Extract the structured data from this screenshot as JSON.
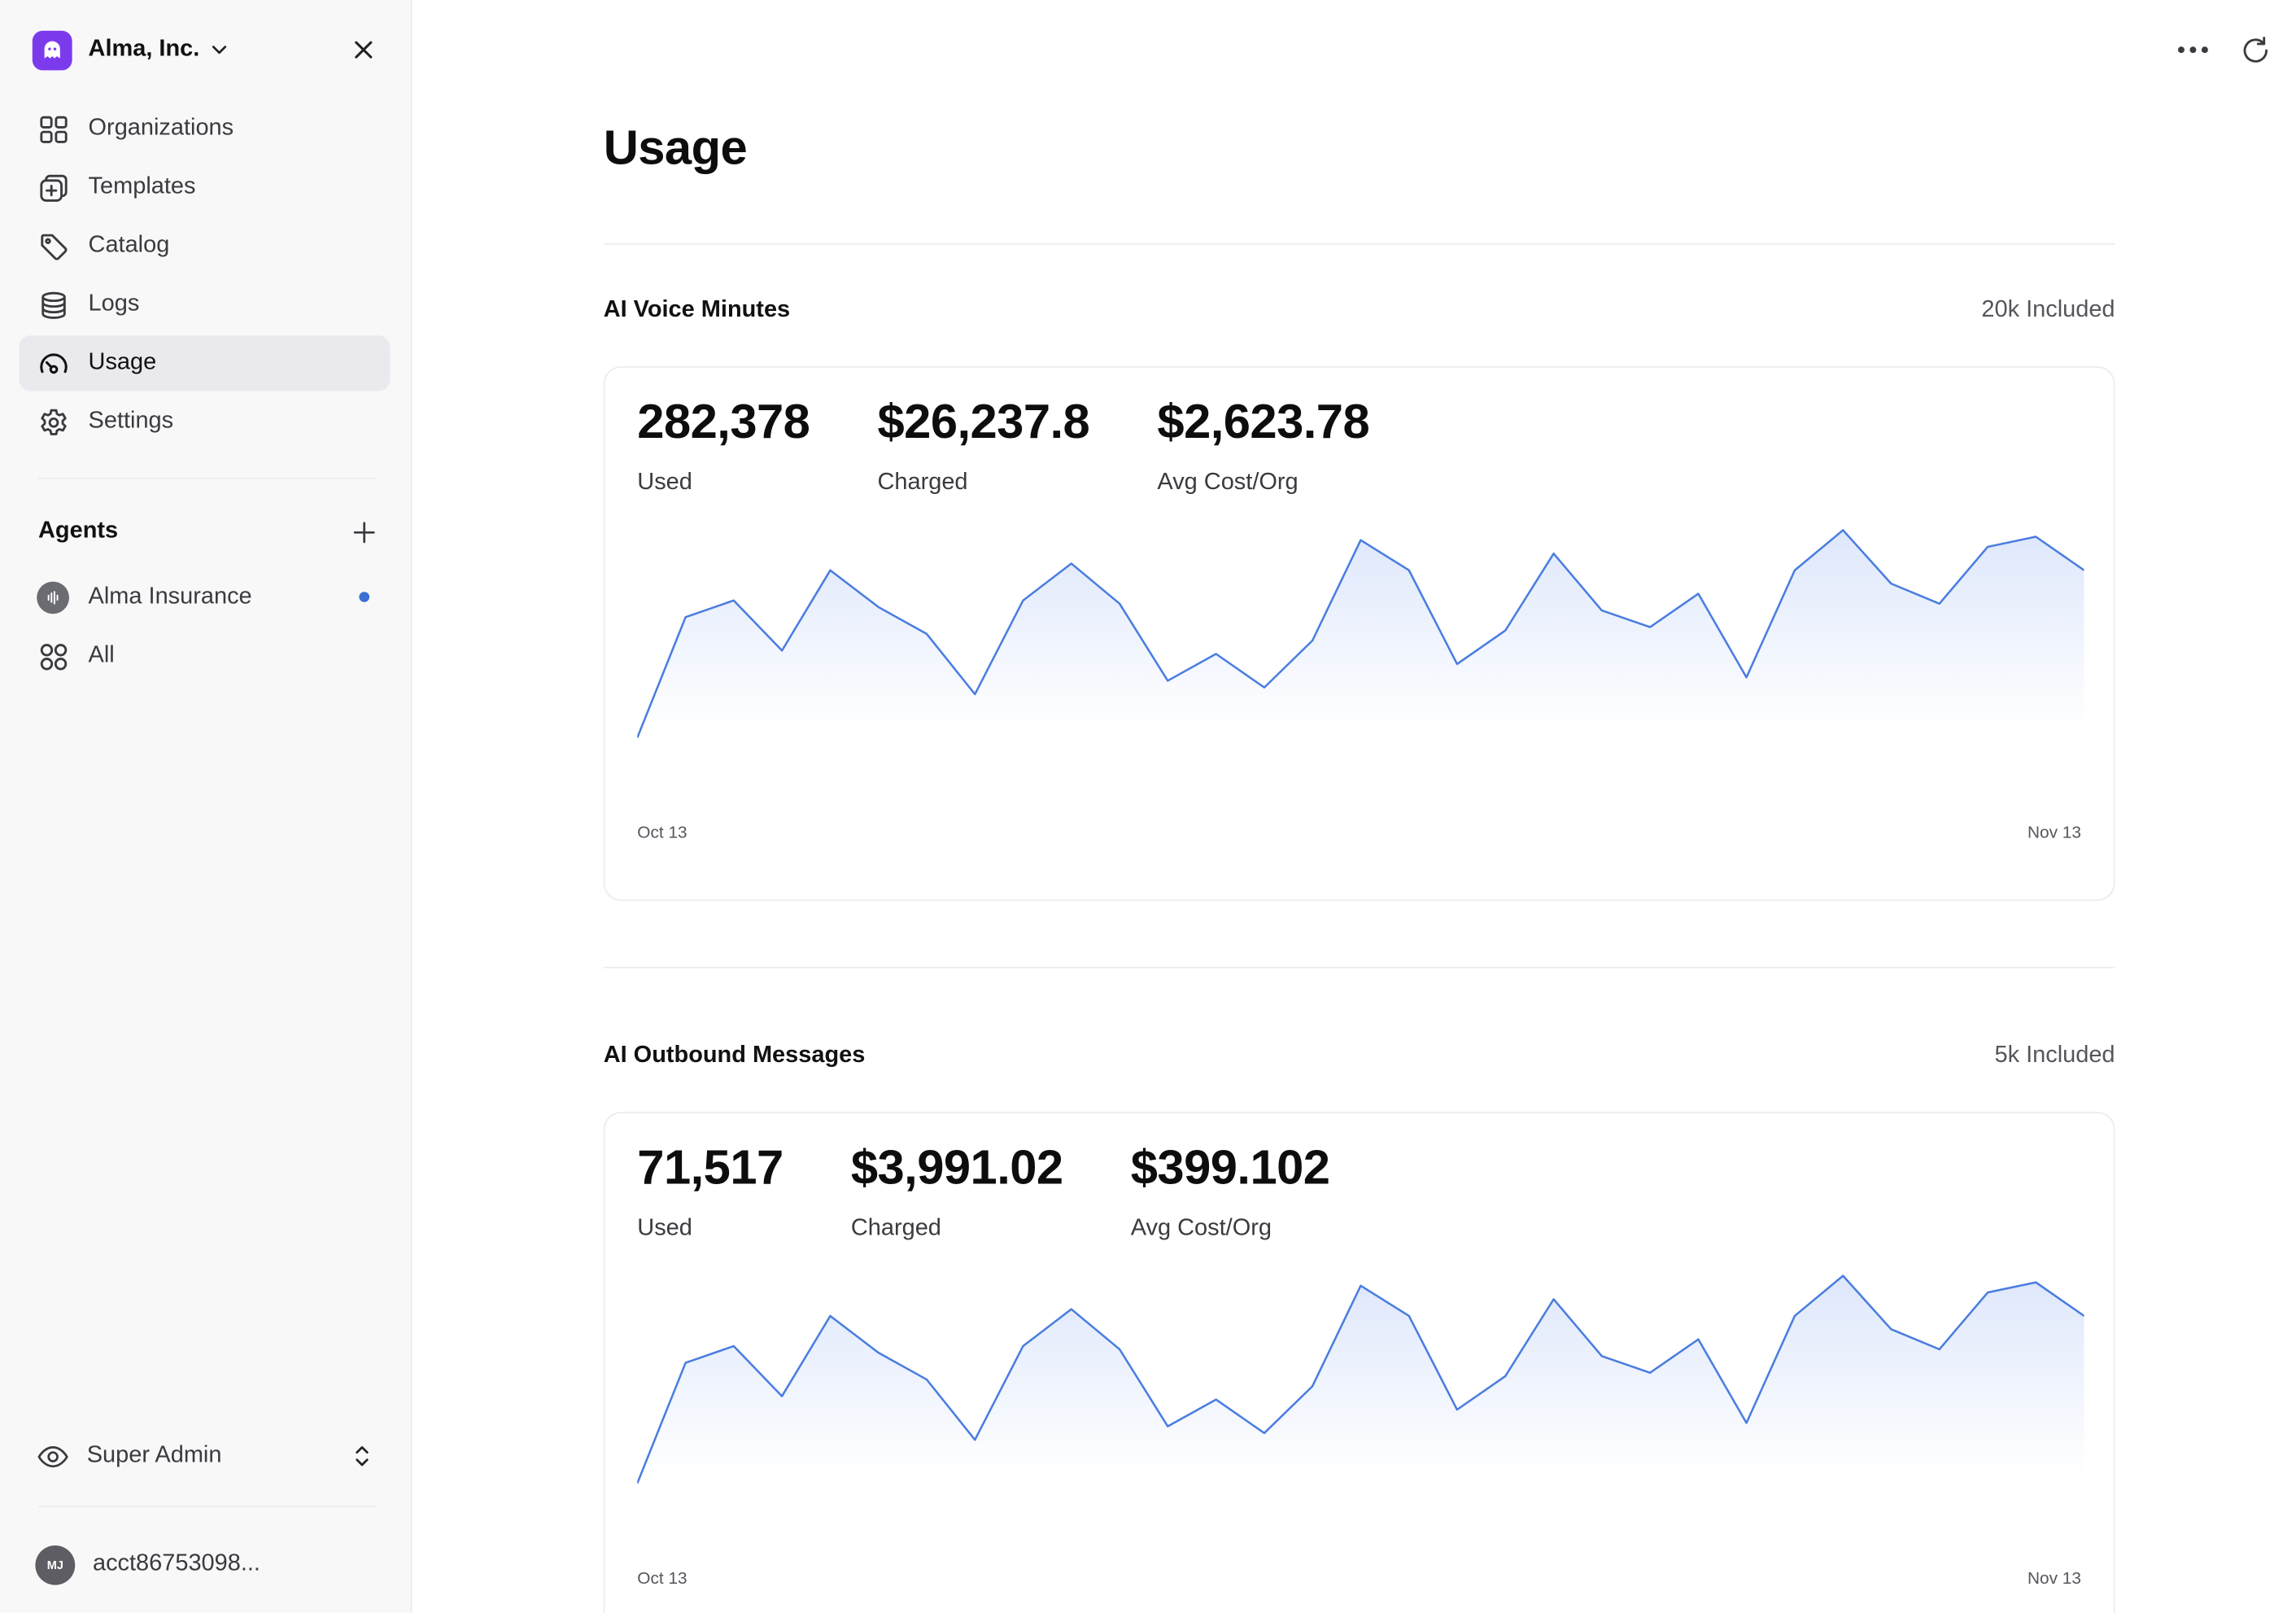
{
  "org": {
    "name": "Alma, Inc."
  },
  "sidebar": {
    "items": [
      {
        "label": "Organizations",
        "icon": "grid-icon"
      },
      {
        "label": "Templates",
        "icon": "templates-icon"
      },
      {
        "label": "Catalog",
        "icon": "tag-icon"
      },
      {
        "label": "Logs",
        "icon": "database-icon"
      },
      {
        "label": "Usage",
        "icon": "gauge-icon",
        "active": true
      },
      {
        "label": "Settings",
        "icon": "gear-icon"
      }
    ],
    "agents_title": "Agents",
    "agents": [
      {
        "label": "Alma Insurance",
        "icon": "waveform-icon",
        "status_color": "#3b6fd4"
      },
      {
        "label": "All",
        "icon": "circles-grid-icon"
      }
    ],
    "role": "Super Admin",
    "account": {
      "initials": "MJ",
      "name": "acct86753098..."
    }
  },
  "page": {
    "title": "Usage"
  },
  "colors": {
    "accent": "#4a7de0",
    "brand": "#7c3aed",
    "fill": "#dce6fb"
  },
  "sections": [
    {
      "title": "AI Voice Minutes",
      "included": "20k Included",
      "stats": [
        {
          "value": "282,378",
          "label": "Used"
        },
        {
          "value": "$26,237.8",
          "label": "Charged"
        },
        {
          "value": "$2,623.78",
          "label": "Avg Cost/Org"
        }
      ],
      "x_start": "Oct 13",
      "x_end": "Nov 13"
    },
    {
      "title": "AI Outbound Messages",
      "included": "5k Included",
      "stats": [
        {
          "value": "71,517",
          "label": "Used"
        },
        {
          "value": "$3,991.02",
          "label": "Charged"
        },
        {
          "value": "$399.102",
          "label": "Avg Cost/Org"
        }
      ],
      "x_start": "Oct 13",
      "x_end": "Nov 13"
    }
  ],
  "chart_data": [
    {
      "type": "area",
      "x_range": [
        "Oct 13",
        "Nov 13"
      ],
      "values": [
        5,
        41,
        46,
        31,
        55,
        44,
        36,
        18,
        46,
        57,
        45,
        22,
        30,
        20,
        34,
        64,
        55,
        27,
        37,
        60,
        43,
        38,
        48,
        23,
        55,
        67,
        51,
        45,
        62,
        65,
        55
      ],
      "grid": false,
      "legend": "none"
    },
    {
      "type": "area",
      "x_range": [
        "Oct 13",
        "Nov 13"
      ],
      "values": [
        5,
        41,
        46,
        31,
        55,
        44,
        36,
        18,
        46,
        57,
        45,
        22,
        30,
        20,
        34,
        64,
        55,
        27,
        37,
        60,
        43,
        38,
        48,
        23,
        55,
        67,
        51,
        45,
        62,
        65,
        55
      ],
      "grid": false,
      "legend": "none"
    }
  ]
}
